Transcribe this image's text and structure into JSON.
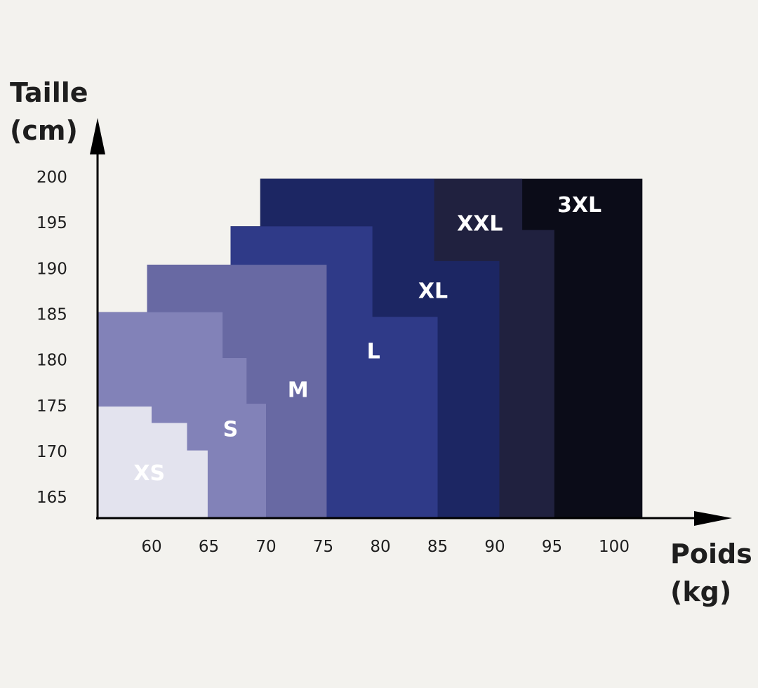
{
  "chart_data": {
    "type": "area",
    "title": "",
    "xlabel": [
      "Poids",
      "(kg)"
    ],
    "ylabel": [
      "Taille",
      "(cm)"
    ],
    "xlim": [
      55.3,
      110.7
    ],
    "ylim": [
      162.7,
      206.4
    ],
    "grid": false,
    "x_ticks": [
      60,
      65,
      70,
      75,
      80,
      85,
      90,
      95,
      100
    ],
    "y_ticks": [
      165,
      170,
      175,
      180,
      185,
      190,
      195,
      200
    ],
    "sizes": [
      {
        "name": "3XL",
        "color": "#0b0c18",
        "label_at": [
          97.4,
          196.8
        ],
        "polygon": [
          [
            55.3,
            162.7
          ],
          [
            55.3,
            185.2
          ],
          [
            59.6,
            185.2
          ],
          [
            59.6,
            190.4
          ],
          [
            66.9,
            190.4
          ],
          [
            66.9,
            194.6
          ],
          [
            69.5,
            194.6
          ],
          [
            69.5,
            199.8
          ],
          [
            102.9,
            199.8
          ],
          [
            102.9,
            162.7
          ]
        ]
      },
      {
        "name": "XXL",
        "color": "#20213f",
        "label_at": [
          88.7,
          194.8
        ],
        "polygon": [
          [
            55.3,
            162.7
          ],
          [
            55.3,
            185.2
          ],
          [
            59.6,
            185.2
          ],
          [
            59.6,
            190.4
          ],
          [
            66.9,
            190.4
          ],
          [
            66.9,
            194.6
          ],
          [
            69.5,
            194.6
          ],
          [
            69.5,
            199.8
          ],
          [
            92.4,
            199.8
          ],
          [
            92.4,
            194.2
          ],
          [
            95.2,
            194.2
          ],
          [
            95.2,
            162.7
          ]
        ]
      },
      {
        "name": "XL",
        "color": "#1c2663",
        "label_at": [
          84.6,
          187.4
        ],
        "polygon": [
          [
            55.3,
            162.7
          ],
          [
            55.3,
            185.2
          ],
          [
            59.6,
            185.2
          ],
          [
            59.6,
            190.4
          ],
          [
            66.9,
            190.4
          ],
          [
            66.9,
            194.6
          ],
          [
            69.5,
            194.6
          ],
          [
            69.5,
            199.8
          ],
          [
            84.7,
            199.8
          ],
          [
            84.7,
            190.8
          ],
          [
            90.4,
            190.8
          ],
          [
            90.4,
            162.7
          ]
        ]
      },
      {
        "name": "L",
        "color": "#2f3a88",
        "label_at": [
          79.4,
          180.8
        ],
        "polygon": [
          [
            55.3,
            162.7
          ],
          [
            55.3,
            185.2
          ],
          [
            59.6,
            185.2
          ],
          [
            59.6,
            190.4
          ],
          [
            66.9,
            190.4
          ],
          [
            66.9,
            194.6
          ],
          [
            79.3,
            194.6
          ],
          [
            79.3,
            184.7
          ],
          [
            85.0,
            184.7
          ],
          [
            85.0,
            162.7
          ]
        ]
      },
      {
        "name": "M",
        "color": "#6869a3",
        "label_at": [
          72.8,
          176.6
        ],
        "polygon": [
          [
            55.3,
            162.7
          ],
          [
            55.3,
            185.2
          ],
          [
            59.6,
            185.2
          ],
          [
            59.6,
            190.4
          ],
          [
            75.3,
            190.4
          ],
          [
            75.3,
            162.7
          ]
        ]
      },
      {
        "name": "S",
        "color": "#8282b8",
        "label_at": [
          66.9,
          172.3
        ],
        "polygon": [
          [
            55.3,
            162.7
          ],
          [
            55.3,
            185.2
          ],
          [
            66.2,
            185.2
          ],
          [
            66.2,
            180.2
          ],
          [
            68.3,
            180.2
          ],
          [
            68.3,
            175.2
          ],
          [
            70.0,
            175.2
          ],
          [
            70.0,
            162.7
          ]
        ]
      },
      {
        "name": "XS",
        "color": "#e3e3ee",
        "label_at": [
          59.8,
          167.5
        ],
        "polygon": [
          [
            55.3,
            162.7
          ],
          [
            55.3,
            174.9
          ],
          [
            60.0,
            174.9
          ],
          [
            60.0,
            173.1
          ],
          [
            63.1,
            173.1
          ],
          [
            63.1,
            170.1
          ],
          [
            64.9,
            170.1
          ],
          [
            64.9,
            162.7
          ]
        ]
      }
    ]
  }
}
